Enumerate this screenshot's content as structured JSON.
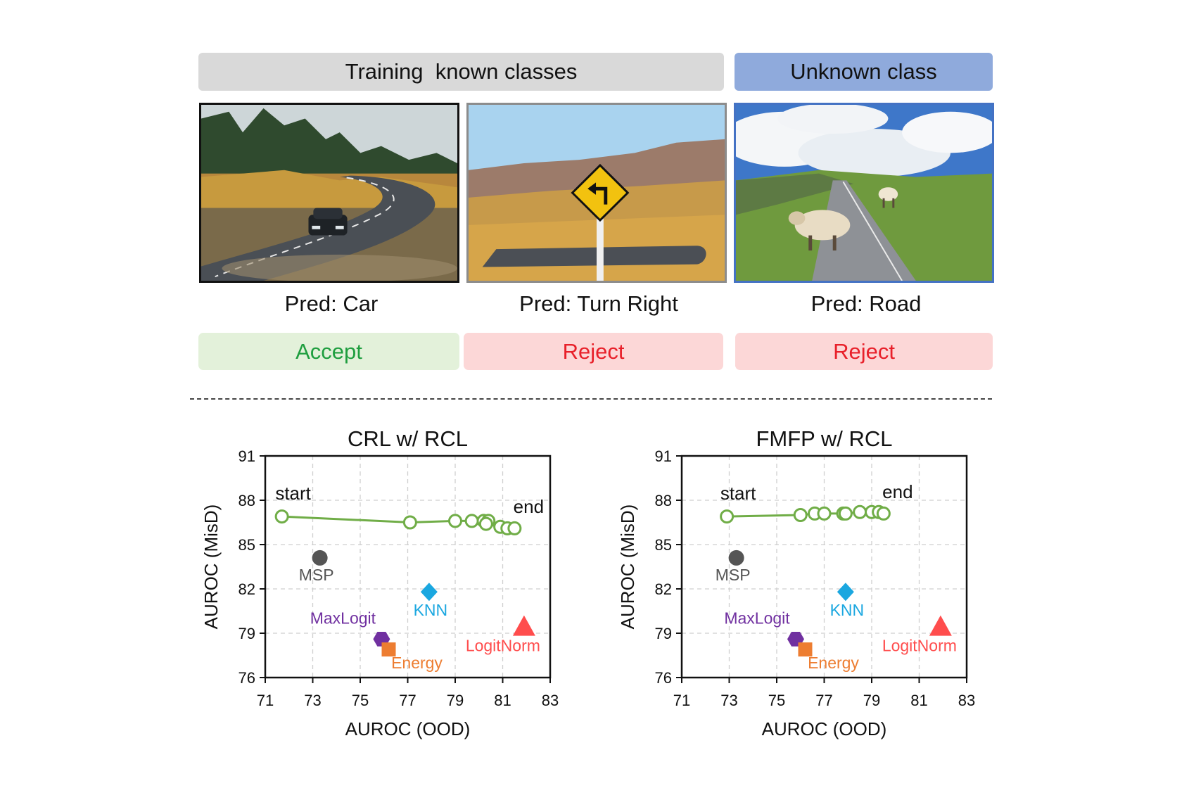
{
  "headers": {
    "known": "Training  known classes",
    "unknown": "Unknown class"
  },
  "panels": [
    {
      "pred": "Pred: Car",
      "decision": "Accept",
      "decision_color": "#1f9e3f",
      "decision_bg": "#e3f1da"
    },
    {
      "pred": "Pred: Turn Right",
      "decision": "Reject",
      "decision_color": "#e8202a",
      "decision_bg": "#fcd7d7"
    },
    {
      "pred": "Pred: Road",
      "decision": "Reject",
      "decision_color": "#e8202a",
      "decision_bg": "#fcd7d7"
    }
  ],
  "colors": {
    "header_known_bg": "#d9d9d9",
    "header_unknown_bg": "#8faadc",
    "curve": "#70ad47",
    "MSP": "#555555",
    "KNN": "#1aa7e0",
    "MaxLogit": "#7030a0",
    "Energy": "#ed7d31",
    "LogitNorm": "#ff4d4d"
  },
  "chart_data": [
    {
      "type": "scatter",
      "title": "CRL w/ RCL",
      "xlabel": "AUROC (OOD)",
      "ylabel": "AUROC (MisD)",
      "xlim": [
        71,
        83
      ],
      "ylim": [
        76,
        91
      ],
      "xticks": [
        "71",
        "73",
        "75",
        "77",
        "79",
        "81",
        "83"
      ],
      "yticks": [
        "76",
        "79",
        "82",
        "85",
        "88",
        "91"
      ],
      "grid": true,
      "curve": {
        "x": [
          71.7,
          77.1,
          79.0,
          79.7,
          80.2,
          80.4,
          80.3,
          80.9,
          81.2,
          81.5
        ],
        "y": [
          86.9,
          86.5,
          86.6,
          86.6,
          86.6,
          86.6,
          86.4,
          86.2,
          86.1,
          86.1
        ],
        "start_label": "start",
        "end_label": "end"
      },
      "methods": [
        {
          "name": "MSP",
          "marker": "circle",
          "x": 73.3,
          "y": 84.1
        },
        {
          "name": "KNN",
          "marker": "diamond",
          "x": 77.9,
          "y": 81.8
        },
        {
          "name": "MaxLogit",
          "marker": "hexagon",
          "x": 75.9,
          "y": 78.6
        },
        {
          "name": "Energy",
          "marker": "square",
          "x": 76.2,
          "y": 77.9
        },
        {
          "name": "LogitNorm",
          "marker": "triangle",
          "x": 81.9,
          "y": 79.4
        }
      ]
    },
    {
      "type": "scatter",
      "title": "FMFP w/ RCL",
      "xlabel": "AUROC (OOD)",
      "ylabel": "AUROC (MisD)",
      "xlim": [
        71,
        83
      ],
      "ylim": [
        76,
        91
      ],
      "xticks": [
        "71",
        "73",
        "75",
        "77",
        "79",
        "81",
        "83"
      ],
      "yticks": [
        "76",
        "79",
        "82",
        "85",
        "88",
        "91"
      ],
      "grid": true,
      "curve": {
        "x": [
          72.9,
          76.0,
          76.6,
          77.0,
          77.8,
          77.9,
          78.5,
          79.0,
          79.3,
          79.5
        ],
        "y": [
          86.9,
          87.0,
          87.1,
          87.1,
          87.1,
          87.1,
          87.2,
          87.2,
          87.2,
          87.1
        ],
        "start_label": "start",
        "end_label": "end"
      },
      "methods": [
        {
          "name": "MSP",
          "marker": "circle",
          "x": 73.3,
          "y": 84.1
        },
        {
          "name": "KNN",
          "marker": "diamond",
          "x": 77.9,
          "y": 81.8
        },
        {
          "name": "MaxLogit",
          "marker": "hexagon",
          "x": 75.8,
          "y": 78.6
        },
        {
          "name": "Energy",
          "marker": "square",
          "x": 76.2,
          "y": 77.9
        },
        {
          "name": "LogitNorm",
          "marker": "triangle",
          "x": 81.9,
          "y": 79.4
        }
      ]
    }
  ]
}
